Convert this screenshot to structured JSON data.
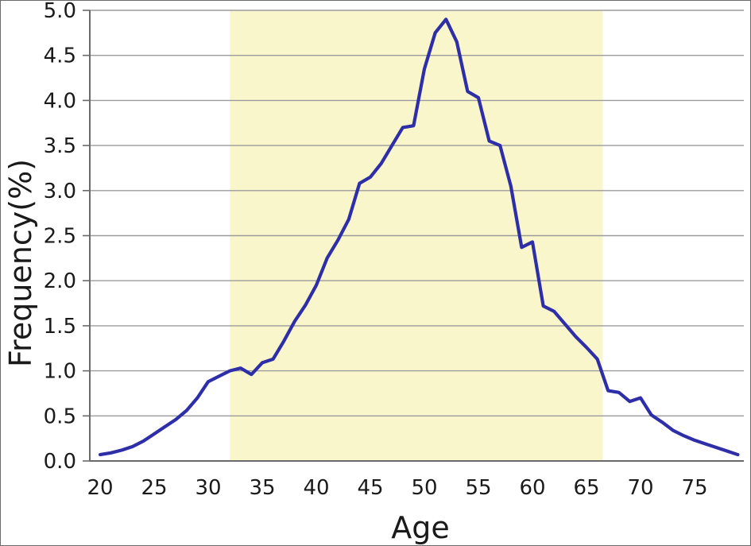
{
  "chart_data": {
    "type": "line",
    "xlabel": "Age",
    "ylabel": "Frequency(%)",
    "x": [
      20,
      21,
      22,
      23,
      24,
      25,
      26,
      27,
      28,
      29,
      30,
      31,
      32,
      33,
      34,
      35,
      36,
      37,
      38,
      39,
      40,
      41,
      42,
      43,
      44,
      45,
      46,
      47,
      48,
      49,
      50,
      51,
      52,
      53,
      54,
      55,
      56,
      57,
      58,
      59,
      60,
      61,
      62,
      63,
      64,
      65,
      66,
      67,
      68,
      69,
      70,
      71,
      72,
      73,
      74,
      75,
      76,
      77,
      78,
      79
    ],
    "values": [
      0.07,
      0.09,
      0.12,
      0.16,
      0.22,
      0.3,
      0.38,
      0.46,
      0.56,
      0.7,
      0.88,
      0.94,
      1.0,
      1.03,
      0.96,
      1.09,
      1.13,
      1.33,
      1.55,
      1.73,
      1.95,
      2.25,
      2.45,
      2.68,
      3.08,
      3.15,
      3.3,
      3.5,
      3.7,
      3.72,
      4.35,
      4.75,
      4.9,
      4.65,
      4.1,
      4.03,
      3.55,
      3.5,
      3.05,
      2.37,
      2.43,
      1.72,
      1.66,
      1.52,
      1.38,
      1.26,
      1.13,
      0.78,
      0.76,
      0.66,
      0.7,
      0.51,
      0.43,
      0.34,
      0.28,
      0.23,
      0.19,
      0.15,
      0.11,
      0.07
    ],
    "xlim": [
      20,
      79.6
    ],
    "ylim": [
      0,
      5
    ],
    "xticks": [
      20,
      25,
      30,
      35,
      40,
      45,
      50,
      55,
      60,
      65,
      70,
      75
    ],
    "ytick_step": 0.5,
    "grid": "horizontal",
    "legend": "none",
    "title": "",
    "highlight_band": {
      "x_start": 32,
      "x_end": 66.5
    },
    "colors": {
      "line": "#2E2EA8",
      "band": "#F9F6CB",
      "grid": "#9B9B9B",
      "axis": "#6A6A6A",
      "text": "#1A1A1A",
      "background": "#FFFFFF"
    }
  }
}
